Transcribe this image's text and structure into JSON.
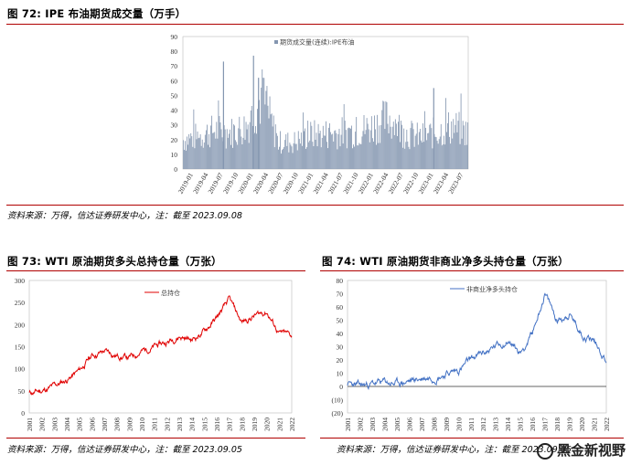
{
  "figures": [
    {
      "title": "图 72:  IPE 布油期货成交量（万手）",
      "source": "资料来源：万得，信达证券研发中心，注：截至 2023.09.08"
    },
    {
      "title": "图 73:  WTI 原油期货多头总持仓量（万张）",
      "source": "资料来源：万得，信达证券研发中心，注：截至 2023.09.05"
    },
    {
      "title": "图 74:  WTI 原油期货非商业净多头持仓量（万张）",
      "source": "资料来源：万得，信达证券研发中心，注：截至 2023.09.05"
    }
  ],
  "watermark": "黑金新视野",
  "colors": {
    "accent": "#b00000",
    "bar": "#8496b0",
    "red_line": "#e00000",
    "blue_line": "#4472c4"
  },
  "chart_data": [
    {
      "type": "bar",
      "title": "",
      "legend": [
        "期货成交量(连续):IPE布油"
      ],
      "legend_position": "top-right",
      "x": [
        "2019-01",
        "2019-04",
        "2019-07",
        "2019-10",
        "2020-01",
        "2020-04",
        "2020-07",
        "2020-10",
        "2021-01",
        "2021-04",
        "2021-07",
        "2021-10",
        "2022-01",
        "2022-04",
        "2022-07",
        "2022-10",
        "2023-01",
        "2023-04",
        "2023-07"
      ],
      "series": [
        {
          "name": "期货成交量(连续):IPE布油",
          "values": [
            24,
            27,
            32,
            30,
            35,
            60,
            22,
            22,
            28,
            29,
            30,
            31,
            35,
            42,
            30,
            26,
            30,
            35,
            30
          ]
        }
      ],
      "peaks": [
        {
          "x": "2019-09",
          "y": 73
        },
        {
          "x": "2020-03",
          "y": 77
        },
        {
          "x": "2020-04",
          "y": 62
        },
        {
          "x": "2023-03",
          "y": 55
        }
      ],
      "ylim": [
        0,
        90
      ],
      "yticks": [
        0,
        10,
        20,
        30,
        40,
        50,
        60,
        70,
        80,
        90
      ],
      "grid": false
    },
    {
      "type": "line",
      "title": "",
      "legend": [
        "总持仓"
      ],
      "legend_position": "top-center",
      "x": [
        "2001",
        "2002",
        "2003",
        "2004",
        "2005",
        "2006",
        "2007",
        "2008",
        "2009",
        "2010",
        "2011",
        "2012",
        "2013",
        "2014",
        "2015",
        "2016",
        "2017",
        "2018",
        "2019",
        "2020",
        "2021",
        "2022"
      ],
      "series": [
        {
          "name": "总持仓",
          "values": [
            45,
            50,
            60,
            75,
            95,
            130,
            140,
            130,
            125,
            140,
            150,
            160,
            175,
            165,
            185,
            215,
            255,
            205,
            220,
            230,
            180,
            175
          ]
        }
      ],
      "ylim": [
        0,
        300
      ],
      "yticks": [
        0,
        50,
        100,
        150,
        200,
        250,
        300
      ],
      "grid": false
    },
    {
      "type": "line",
      "title": "",
      "legend": [
        "非商业净多头持仓"
      ],
      "legend_position": "top-left",
      "x": [
        "2001",
        "2002",
        "2003",
        "2004",
        "2005",
        "2006",
        "2007",
        "2008",
        "2009",
        "2010",
        "2011",
        "2012",
        "2013",
        "2014",
        "2015",
        "2016",
        "2017",
        "2018",
        "2019",
        "2020",
        "2021",
        "2022"
      ],
      "series": [
        {
          "name": "非商业净多头持仓",
          "values": [
            2,
            0,
            2,
            3,
            2,
            4,
            6,
            8,
            10,
            12,
            20,
            25,
            30,
            35,
            25,
            40,
            70,
            50,
            55,
            40,
            35,
            20
          ]
        }
      ],
      "ylim": [
        -20,
        80
      ],
      "yticks": [
        "(20)",
        "(10)",
        "0",
        "10",
        "20",
        "30",
        "40",
        "50",
        "60",
        "70",
        "80"
      ],
      "grid": false
    }
  ]
}
